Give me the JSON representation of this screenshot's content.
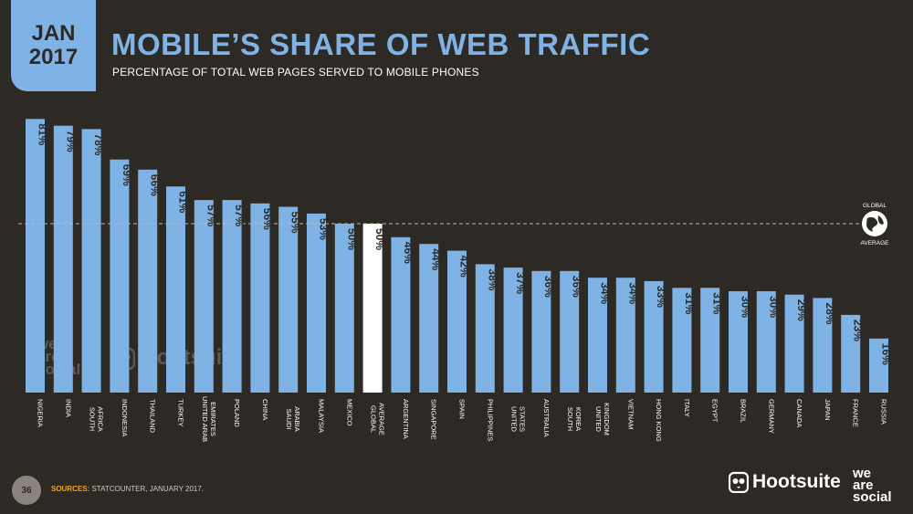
{
  "header": {
    "month": "JAN",
    "year": "2017",
    "title": "MOBILE’S SHARE OF WEB TRAFFIC",
    "subtitle": "PERCENTAGE OF TOTAL WEB PAGES SERVED TO MOBILE PHONES"
  },
  "footer": {
    "page_number": "36",
    "sources_label": "SOURCES:",
    "sources_text": "STATCOUNTER, JANUARY 2017."
  },
  "brands": {
    "hootsuite": "Hootsuite",
    "wearesocial": [
      "we",
      "are",
      "social"
    ]
  },
  "watermark": {
    "wearesocial": [
      "we",
      "are",
      "social"
    ],
    "hootsuite": "Hootsuite"
  },
  "colors": {
    "background": "#2d2a26",
    "bar": "#7fb3e6",
    "highlight": "#ffffff",
    "value_label": "#2d2a26",
    "accent": "#f2a51c"
  },
  "chart_data": {
    "type": "bar",
    "value_suffix": "%",
    "categories": [
      "NIGERIA",
      "INDIA",
      "SOUTH AFRICA",
      "INDONESIA",
      "THAILAND",
      "TURKEY",
      "UNITED ARAB EMIRATES",
      "POLAND",
      "CHINA",
      "SAUDI ARABIA",
      "MALAYSIA",
      "MEXICO",
      "GLOBAL AVERAGE",
      "ARGENTINA",
      "SINGAPORE",
      "SPAIN",
      "PHILIPPINES",
      "UNITED STATES",
      "AUSTRALIA",
      "SOUTH KOREA",
      "UNITED KINGDOM",
      "VIETNAM",
      "HONG KONG",
      "ITALY",
      "EGYPT",
      "BRAZIL",
      "GERMANY",
      "CANADA",
      "JAPAN",
      "FRANCE",
      "RUSSIA"
    ],
    "category_lines": [
      [
        "NIGERIA"
      ],
      [
        "INDIA"
      ],
      [
        "SOUTH",
        "AFRICA"
      ],
      [
        "INDONESIA"
      ],
      [
        "THAILAND"
      ],
      [
        "TURKEY"
      ],
      [
        "UNITED ARAB",
        "EMIRATES"
      ],
      [
        "POLAND"
      ],
      [
        "CHINA"
      ],
      [
        "SAUDI",
        "ARABIA"
      ],
      [
        "MALAYSIA"
      ],
      [
        "MEXICO"
      ],
      [
        "GLOBAL",
        "AVERAGE"
      ],
      [
        "ARGENTINA"
      ],
      [
        "SINGAPORE"
      ],
      [
        "SPAIN"
      ],
      [
        "PHILIPPINES"
      ],
      [
        "UNITED",
        "STATES"
      ],
      [
        "AUSTRALIA"
      ],
      [
        "SOUTH",
        "KOREA"
      ],
      [
        "UNITED",
        "KINGDOM"
      ],
      [
        "VIETNAM"
      ],
      [
        "HONG KONG"
      ],
      [
        "ITALY"
      ],
      [
        "EGYPT"
      ],
      [
        "BRAZIL"
      ],
      [
        "GERMANY"
      ],
      [
        "CANADA"
      ],
      [
        "JAPAN"
      ],
      [
        "FRANCE"
      ],
      [
        "RUSSIA"
      ]
    ],
    "values": [
      81,
      79,
      78,
      69,
      66,
      61,
      57,
      57,
      56,
      55,
      53,
      50,
      50,
      46,
      44,
      42,
      38,
      37,
      36,
      36,
      34,
      34,
      33,
      31,
      31,
      30,
      30,
      29,
      28,
      23,
      16
    ],
    "highlight_category": "GLOBAL AVERAGE",
    "reference_line": {
      "value": 50,
      "label": [
        "GLOBAL",
        "AVERAGE"
      ]
    },
    "ylim": [
      0,
      100
    ],
    "grid": false,
    "legend": "none"
  }
}
